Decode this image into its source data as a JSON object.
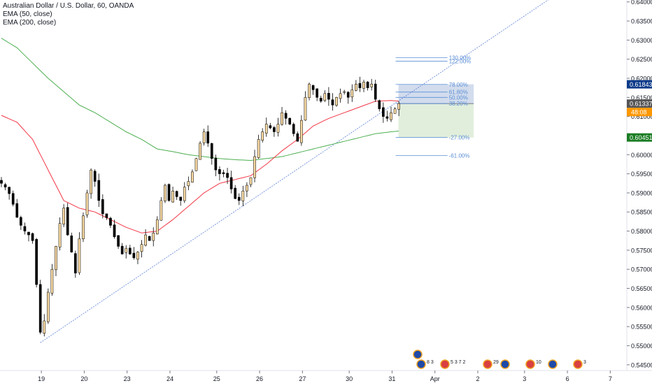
{
  "legend": {
    "title": "Australian Dollar / U.S. Dollar, 60, OANDA",
    "ema50": "EMA (50, close)",
    "ema200": "EMA (200, close)"
  },
  "colors": {
    "up": "#ffffff",
    "down": "#000000",
    "candle_body_up": "#f8d9a2",
    "ema50": "#f23645",
    "ema200": "#4caf50",
    "trendline": "#5b7fd6",
    "fib": "#5b8fd6",
    "label_blue": "#0d3b8a",
    "label_grey": "#555555",
    "label_orange": "#ff9800",
    "label_green": "#1b7d24"
  },
  "price_labels": {
    "high_marker": "0.61843",
    "last_price": "0.61337",
    "countdown": "48:08",
    "low_marker": "0.60451"
  },
  "fib_levels": [
    "130.00%",
    "122.00%",
    "78.00%",
    "61.80%",
    "50.00%",
    "38.20%",
    "-27.00%",
    "-61.00%"
  ],
  "events": [
    {
      "icon": "flag-au",
      "count": ""
    },
    {
      "icon": "flag-au",
      "count": "8 3"
    },
    {
      "icon": "flag-us",
      "count": "5 3 7 2"
    },
    {
      "icon": "flag-us",
      "count": "29"
    },
    {
      "icon": "flag-au",
      "count": ""
    },
    {
      "icon": "flag-us",
      "count": "10"
    },
    {
      "icon": "flag-au",
      "count": ""
    },
    {
      "icon": "flag-us",
      "count": "3"
    }
  ],
  "chart_data": {
    "type": "candlestick",
    "symbol": "AUDUSD",
    "timeframe": "60",
    "ylim": [
      0.5435,
      0.6405
    ],
    "yticks": [
      "0.64000",
      "0.63500",
      "0.63000",
      "0.62500",
      "0.62000",
      "0.61500",
      "0.61000",
      "0.60500",
      "0.60000",
      "0.59500",
      "0.59000",
      "0.58500",
      "0.58000",
      "0.57500",
      "0.57000",
      "0.56500",
      "0.56000",
      "0.55500",
      "0.55000",
      "0.54500"
    ],
    "xticks": [
      "19",
      "20",
      "23",
      "24",
      "25",
      "26",
      "27",
      "30",
      "31",
      "Apr",
      "2",
      "3",
      "6",
      "7"
    ],
    "x_tick_slots": [
      2,
      13,
      24,
      35,
      47,
      58,
      69,
      81,
      92,
      103,
      114,
      126,
      137,
      148
    ],
    "slots": 162,
    "close_path": [
      {
        "slot": 0,
        "price": 0.5925
      },
      {
        "slot": 1,
        "price": 0.5915
      },
      {
        "slot": 2,
        "price": 0.5898
      },
      {
        "slot": 3,
        "price": 0.587
      },
      {
        "slot": 4,
        "price": 0.5836
      },
      {
        "slot": 5,
        "price": 0.5815
      },
      {
        "slot": 6,
        "price": 0.58
      },
      {
        "slot": 7,
        "price": 0.579
      },
      {
        "slot": 8,
        "price": 0.5775
      },
      {
        "slot": 9,
        "price": 0.566
      },
      {
        "slot": 10,
        "price": 0.5535
      },
      {
        "slot": 11,
        "price": 0.5565
      },
      {
        "slot": 12,
        "price": 0.564
      },
      {
        "slot": 13,
        "price": 0.57
      },
      {
        "slot": 14,
        "price": 0.576
      },
      {
        "slot": 15,
        "price": 0.582
      },
      {
        "slot": 16,
        "price": 0.586
      },
      {
        "slot": 17,
        "price": 0.579
      },
      {
        "slot": 18,
        "price": 0.5745
      },
      {
        "slot": 19,
        "price": 0.569
      },
      {
        "slot": 20,
        "price": 0.578
      },
      {
        "slot": 21,
        "price": 0.584
      },
      {
        "slot": 22,
        "price": 0.59
      },
      {
        "slot": 23,
        "price": 0.596
      },
      {
        "slot": 24,
        "price": 0.593
      },
      {
        "slot": 25,
        "price": 0.588
      },
      {
        "slot": 26,
        "price": 0.5845
      },
      {
        "slot": 27,
        "price": 0.5835
      },
      {
        "slot": 28,
        "price": 0.5815
      },
      {
        "slot": 29,
        "price": 0.5785
      },
      {
        "slot": 30,
        "price": 0.576
      },
      {
        "slot": 31,
        "price": 0.574
      },
      {
        "slot": 32,
        "price": 0.5755
      },
      {
        "slot": 33,
        "price": 0.574
      },
      {
        "slot": 34,
        "price": 0.573
      },
      {
        "slot": 35,
        "price": 0.5745
      },
      {
        "slot": 36,
        "price": 0.5765
      },
      {
        "slot": 37,
        "price": 0.579
      },
      {
        "slot": 38,
        "price": 0.5775
      },
      {
        "slot": 39,
        "price": 0.5795
      },
      {
        "slot": 40,
        "price": 0.583
      },
      {
        "slot": 41,
        "price": 0.588
      },
      {
        "slot": 42,
        "price": 0.592
      },
      {
        "slot": 43,
        "price": 0.588
      },
      {
        "slot": 44,
        "price": 0.5905
      },
      {
        "slot": 45,
        "price": 0.589
      },
      {
        "slot": 46,
        "price": 0.588
      },
      {
        "slot": 47,
        "price": 0.5915
      },
      {
        "slot": 48,
        "price": 0.593
      },
      {
        "slot": 49,
        "price": 0.5955
      },
      {
        "slot": 50,
        "price": 0.599
      },
      {
        "slot": 51,
        "price": 0.603
      },
      {
        "slot": 52,
        "price": 0.606
      },
      {
        "slot": 53,
        "price": 0.603
      },
      {
        "slot": 54,
        "price": 0.599
      },
      {
        "slot": 55,
        "price": 0.596
      },
      {
        "slot": 56,
        "price": 0.595
      },
      {
        "slot": 57,
        "price": 0.595
      },
      {
        "slot": 58,
        "price": 0.594
      },
      {
        "slot": 59,
        "price": 0.591
      },
      {
        "slot": 60,
        "price": 0.5885
      },
      {
        "slot": 61,
        "price": 0.588
      },
      {
        "slot": 62,
        "price": 0.5905
      },
      {
        "slot": 63,
        "price": 0.592
      },
      {
        "slot": 64,
        "price": 0.594
      },
      {
        "slot": 65,
        "price": 0.5995
      },
      {
        "slot": 66,
        "price": 0.604
      },
      {
        "slot": 67,
        "price": 0.606
      },
      {
        "slot": 68,
        "price": 0.608
      },
      {
        "slot": 69,
        "price": 0.607
      },
      {
        "slot": 70,
        "price": 0.606
      },
      {
        "slot": 71,
        "price": 0.608
      },
      {
        "slot": 72,
        "price": 0.611
      },
      {
        "slot": 73,
        "price": 0.6095
      },
      {
        "slot": 74,
        "price": 0.608
      },
      {
        "slot": 75,
        "price": 0.6055
      },
      {
        "slot": 76,
        "price": 0.6035
      },
      {
        "slot": 77,
        "price": 0.609
      },
      {
        "slot": 78,
        "price": 0.615
      },
      {
        "slot": 79,
        "price": 0.6185
      },
      {
        "slot": 80,
        "price": 0.617
      },
      {
        "slot": 81,
        "price": 0.615
      },
      {
        "slot": 82,
        "price": 0.614
      },
      {
        "slot": 83,
        "price": 0.616
      },
      {
        "slot": 84,
        "price": 0.6145
      },
      {
        "slot": 85,
        "price": 0.613
      },
      {
        "slot": 86,
        "price": 0.615
      },
      {
        "slot": 87,
        "price": 0.616
      },
      {
        "slot": 88,
        "price": 0.6165
      },
      {
        "slot": 89,
        "price": 0.615
      },
      {
        "slot": 90,
        "price": 0.617
      },
      {
        "slot": 91,
        "price": 0.6185
      },
      {
        "slot": 92,
        "price": 0.6175
      },
      {
        "slot": 93,
        "price": 0.619
      },
      {
        "slot": 94,
        "price": 0.6175
      },
      {
        "slot": 95,
        "price": 0.6185
      },
      {
        "slot": 96,
        "price": 0.6145
      },
      {
        "slot": 97,
        "price": 0.612
      },
      {
        "slot": 98,
        "price": 0.61
      },
      {
        "slot": 99,
        "price": 0.6095
      },
      {
        "slot": 100,
        "price": 0.611
      },
      {
        "slot": 101,
        "price": 0.612
      },
      {
        "slot": 102,
        "price": 0.6134
      }
    ],
    "ema50_path": [
      {
        "slot": 0,
        "price": 0.6103
      },
      {
        "slot": 4,
        "price": 0.6085
      },
      {
        "slot": 8,
        "price": 0.604
      },
      {
        "slot": 12,
        "price": 0.596
      },
      {
        "slot": 16,
        "price": 0.588
      },
      {
        "slot": 20,
        "price": 0.586
      },
      {
        "slot": 24,
        "price": 0.585
      },
      {
        "slot": 28,
        "price": 0.583
      },
      {
        "slot": 32,
        "price": 0.581
      },
      {
        "slot": 36,
        "price": 0.5795
      },
      {
        "slot": 40,
        "price": 0.58
      },
      {
        "slot": 44,
        "price": 0.583
      },
      {
        "slot": 48,
        "price": 0.5865
      },
      {
        "slot": 52,
        "price": 0.59
      },
      {
        "slot": 56,
        "price": 0.5925
      },
      {
        "slot": 60,
        "price": 0.5935
      },
      {
        "slot": 64,
        "price": 0.5945
      },
      {
        "slot": 68,
        "price": 0.5975
      },
      {
        "slot": 72,
        "price": 0.601
      },
      {
        "slot": 76,
        "price": 0.604
      },
      {
        "slot": 80,
        "price": 0.6075
      },
      {
        "slot": 84,
        "price": 0.6095
      },
      {
        "slot": 88,
        "price": 0.611
      },
      {
        "slot": 92,
        "price": 0.6125
      },
      {
        "slot": 96,
        "price": 0.614
      },
      {
        "slot": 100,
        "price": 0.6142
      },
      {
        "slot": 102,
        "price": 0.614
      }
    ],
    "ema200_path": [
      {
        "slot": 0,
        "price": 0.6305
      },
      {
        "slot": 4,
        "price": 0.628
      },
      {
        "slot": 8,
        "price": 0.624
      },
      {
        "slot": 12,
        "price": 0.62
      },
      {
        "slot": 16,
        "price": 0.6165
      },
      {
        "slot": 20,
        "price": 0.613
      },
      {
        "slot": 24,
        "price": 0.611
      },
      {
        "slot": 28,
        "price": 0.6085
      },
      {
        "slot": 32,
        "price": 0.606
      },
      {
        "slot": 36,
        "price": 0.604
      },
      {
        "slot": 40,
        "price": 0.6015
      },
      {
        "slot": 44,
        "price": 0.6008
      },
      {
        "slot": 48,
        "price": 0.6
      },
      {
        "slot": 52,
        "price": 0.5995
      },
      {
        "slot": 56,
        "price": 0.599
      },
      {
        "slot": 60,
        "price": 0.5987
      },
      {
        "slot": 64,
        "price": 0.5985
      },
      {
        "slot": 68,
        "price": 0.599
      },
      {
        "slot": 72,
        "price": 0.5995
      },
      {
        "slot": 76,
        "price": 0.6005
      },
      {
        "slot": 80,
        "price": 0.6015
      },
      {
        "slot": 84,
        "price": 0.6025
      },
      {
        "slot": 88,
        "price": 0.6035
      },
      {
        "slot": 92,
        "price": 0.6045
      },
      {
        "slot": 96,
        "price": 0.6055
      },
      {
        "slot": 100,
        "price": 0.606
      },
      {
        "slot": 102,
        "price": 0.6062
      }
    ],
    "trendline": {
      "from": {
        "slot": 10,
        "price": 0.5508
      },
      "to": {
        "slot": 141,
        "price": 0.641
      }
    },
    "fib_tool": {
      "from_slot": 101,
      "to_slot": 110,
      "label_slot": 106,
      "levels": [
        {
          "label": "130.00%",
          "price": 0.6254
        },
        {
          "label": "122.00%",
          "price": 0.6245
        },
        {
          "label": "78.00%",
          "price": 0.6184
        },
        {
          "label": "61.80%",
          "price": 0.6164
        },
        {
          "label": "50.00%",
          "price": 0.615
        },
        {
          "label": "38.20%",
          "price": 0.6134
        },
        {
          "label": "-27.00%",
          "price": 0.6045
        },
        {
          "label": "-61.00%",
          "price": 0.5998
        }
      ]
    },
    "position_box": {
      "from_slot": 101,
      "to_slot": 123,
      "entry": 0.61337,
      "target": 0.61843,
      "stop": 0.60451
    },
    "grid": false,
    "legend_position": "top-left"
  }
}
